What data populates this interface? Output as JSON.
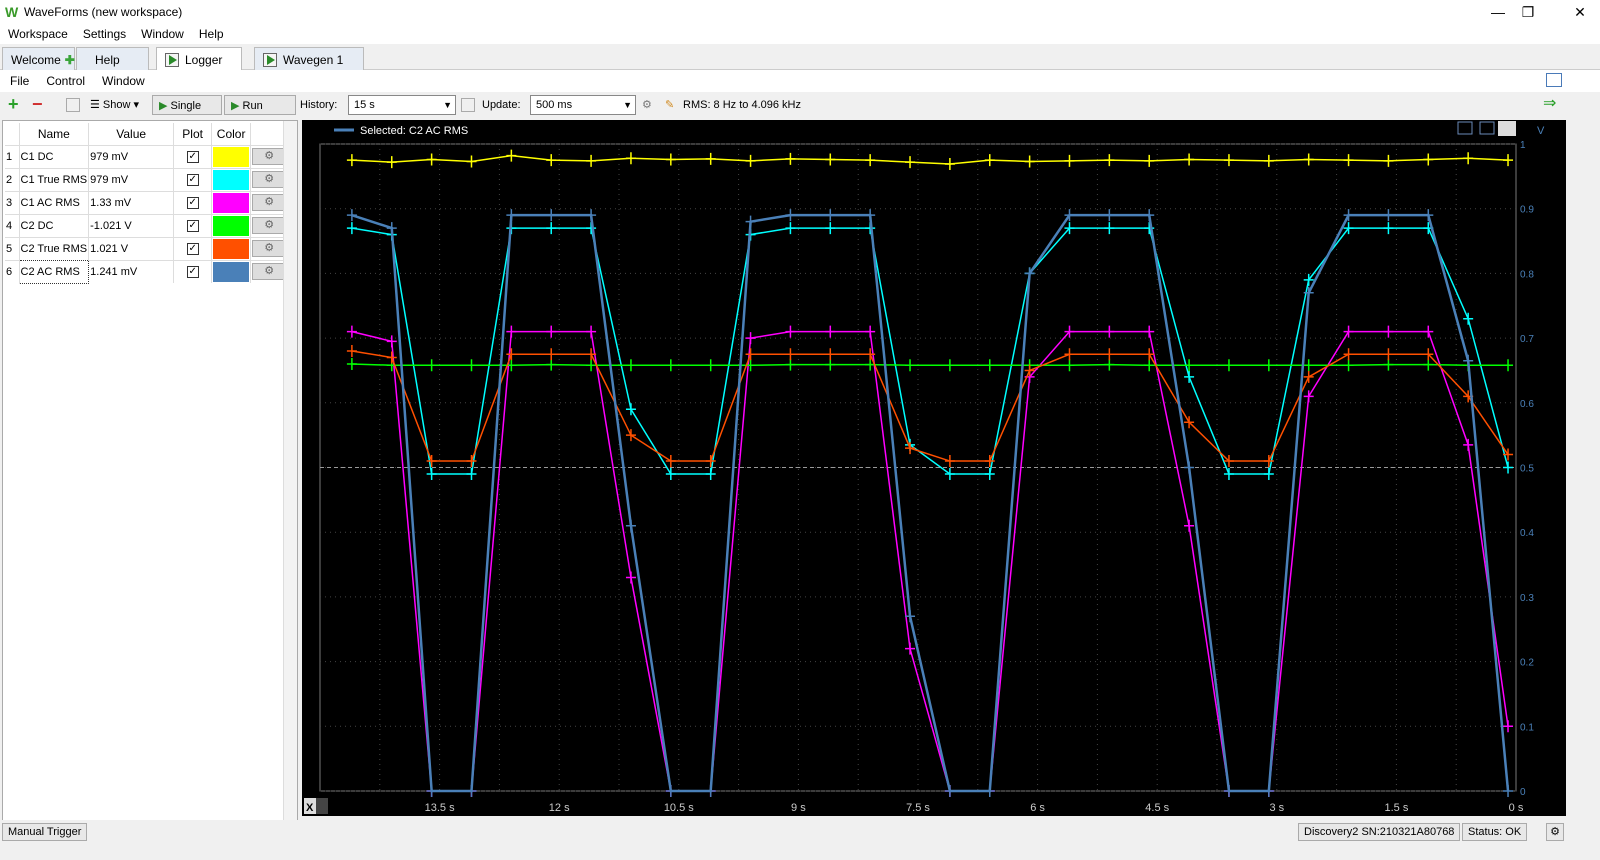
{
  "app": {
    "logo": "W",
    "title": "WaveForms  (new workspace)"
  },
  "window_controls": {
    "minimize": "—",
    "restore": "❐",
    "close": "✕"
  },
  "menu": [
    "Workspace",
    "Settings",
    "Window",
    "Help"
  ],
  "tabs": [
    {
      "label": "Welcome",
      "icon": "plus-icon"
    },
    {
      "label": "Help"
    },
    {
      "label": "Logger",
      "icon": "play-icon",
      "close": "✕",
      "active": true
    },
    {
      "label": "Wavegen 1",
      "icon": "play-icon",
      "close": "✕"
    }
  ],
  "submenu": [
    "File",
    "Control",
    "Window"
  ],
  "toolbar": {
    "show_label": "Show",
    "single_label": "Single",
    "run_label": "Run",
    "history_label": "History:",
    "history_value": "15 s",
    "update_label": "Update:",
    "update_value": "500 ms",
    "rms_info": "RMS: 8 Hz to 4.096 kHz"
  },
  "table": {
    "headers": [
      "Name",
      "Value",
      "Plot",
      "Color"
    ],
    "rows": [
      {
        "index": "1",
        "name": "C1 DC",
        "value": "979 mV",
        "color": "#ffff00"
      },
      {
        "index": "2",
        "name": "C1 True RMS",
        "value": "979 mV",
        "color": "#00ffff"
      },
      {
        "index": "3",
        "name": "C1 AC RMS",
        "value": "1.33 mV",
        "color": "#ff00ff"
      },
      {
        "index": "4",
        "name": "C2 DC",
        "value": "-1.021 V",
        "color": "#00ff00"
      },
      {
        "index": "5",
        "name": "C2 True RMS",
        "value": "1.021 V",
        "color": "#ff5000"
      },
      {
        "index": "6",
        "name": "C2 AC RMS",
        "value": "1.241 mV",
        "color": "#4a80b8"
      }
    ]
  },
  "plot": {
    "legend": "Selected: C2 AC RMS",
    "y_unit": "V",
    "x_button": "X"
  },
  "chart_data": {
    "type": "line",
    "xlim": [
      15,
      0
    ],
    "ylim": [
      0,
      1
    ],
    "yticks": [
      0,
      0.1,
      0.2,
      0.3,
      0.4,
      0.5,
      0.6,
      0.7,
      0.8,
      0.9,
      1
    ],
    "ytick_labels": [
      "0",
      "0.1",
      "0.2",
      "0.3",
      "0.4",
      "0.5",
      "0.6",
      "0.7",
      "0.8",
      "0.9",
      "1"
    ],
    "xticks": [
      13.5,
      12,
      10.5,
      9,
      7.5,
      6,
      4.5,
      3,
      1.5,
      0
    ],
    "xtick_labels": [
      "13.5 s",
      "12 s",
      "10.5 s",
      "9 s",
      "7.5 s",
      "6 s",
      "4.5 s",
      "3 s",
      "1.5 s",
      "0 s"
    ],
    "grid": true,
    "x": [
      14.6,
      14.1,
      13.6,
      13.1,
      12.6,
      12.1,
      11.6,
      11.1,
      10.6,
      10.1,
      9.6,
      9.1,
      8.6,
      8.1,
      7.6,
      7.1,
      6.6,
      6.1,
      5.6,
      5.1,
      4.6,
      4.1,
      3.6,
      3.1,
      2.6,
      2.1,
      1.6,
      1.1,
      0.6,
      0.1
    ],
    "series": [
      {
        "name": "C1 DC",
        "color": "#ffff00",
        "values": [
          0.975,
          0.972,
          0.976,
          0.973,
          0.982,
          0.975,
          0.974,
          0.978,
          0.976,
          0.977,
          0.974,
          0.977,
          0.976,
          0.975,
          0.972,
          0.969,
          0.975,
          0.973,
          0.974,
          0.975,
          0.974,
          0.976,
          0.975,
          0.974,
          0.976,
          0.975,
          0.974,
          0.976,
          0.978,
          0.975
        ]
      },
      {
        "name": "C1 True RMS",
        "color": "#00ffff",
        "values": [
          0.87,
          0.86,
          0.49,
          0.49,
          0.87,
          0.87,
          0.87,
          0.59,
          0.49,
          0.49,
          0.86,
          0.87,
          0.87,
          0.87,
          0.535,
          0.49,
          0.49,
          0.8,
          0.87,
          0.87,
          0.87,
          0.64,
          0.49,
          0.49,
          0.79,
          0.87,
          0.87,
          0.87,
          0.73,
          0.5
        ]
      },
      {
        "name": "C1 AC RMS",
        "color": "#ff00ff",
        "values": [
          0.71,
          0.695,
          0.0,
          0.0,
          0.71,
          0.71,
          0.71,
          0.33,
          0.0,
          0.0,
          0.7,
          0.71,
          0.71,
          0.71,
          0.22,
          0.0,
          0.0,
          0.64,
          0.71,
          0.71,
          0.71,
          0.41,
          0.0,
          0.0,
          0.61,
          0.71,
          0.71,
          0.71,
          0.535,
          0.1
        ]
      },
      {
        "name": "C2 DC",
        "color": "#00ff00",
        "values": [
          0.66,
          0.658,
          0.658,
          0.658,
          0.658,
          0.659,
          0.658,
          0.658,
          0.658,
          0.658,
          0.658,
          0.659,
          0.659,
          0.659,
          0.658,
          0.658,
          0.658,
          0.658,
          0.658,
          0.659,
          0.658,
          0.658,
          0.658,
          0.658,
          0.658,
          0.658,
          0.659,
          0.659,
          0.658,
          0.658
        ]
      },
      {
        "name": "C2 True RMS",
        "color": "#ff5000",
        "values": [
          0.68,
          0.67,
          0.51,
          0.51,
          0.675,
          0.675,
          0.675,
          0.55,
          0.51,
          0.51,
          0.675,
          0.675,
          0.675,
          0.675,
          0.53,
          0.51,
          0.51,
          0.65,
          0.675,
          0.675,
          0.675,
          0.57,
          0.51,
          0.51,
          0.64,
          0.675,
          0.675,
          0.675,
          0.61,
          0.52
        ]
      },
      {
        "name": "C2 AC RMS",
        "color": "#4a80b8",
        "values": [
          0.89,
          0.87,
          0.0,
          0.0,
          0.89,
          0.89,
          0.89,
          0.41,
          0.0,
          0.0,
          0.88,
          0.89,
          0.89,
          0.89,
          0.27,
          0.0,
          0.0,
          0.8,
          0.89,
          0.89,
          0.89,
          0.5,
          0.0,
          0.0,
          0.77,
          0.89,
          0.89,
          0.89,
          0.665,
          0.0
        ]
      }
    ],
    "reference_line": 0.5
  },
  "status": {
    "manual_trigger": "Manual Trigger",
    "device": "Discovery2 SN:210321A80768",
    "status": "Status: OK"
  }
}
